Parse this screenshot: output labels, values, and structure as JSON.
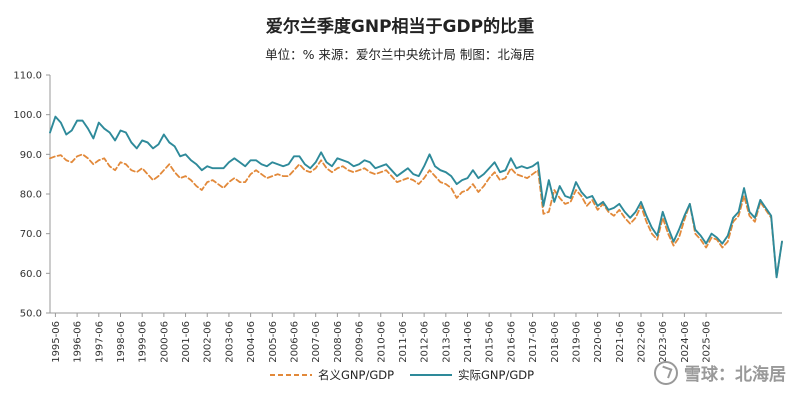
{
  "header": {
    "title": "爱尔兰季度GNP相当于GDP的比重",
    "subtitle": "单位：% 来源：爱尔兰中央统计局 制图：北海居"
  },
  "watermark": {
    "text": "雪球：北海居"
  },
  "colors": {
    "nominal": "#E2893A",
    "real": "#2E8A9A",
    "axis": "#999999"
  },
  "chart_data": {
    "type": "line",
    "title": "爱尔兰季度GNP相当于GDP的比重",
    "ylim": [
      50,
      110
    ],
    "yticks": [
      "50.0",
      "60.0",
      "70.0",
      "80.0",
      "90.0",
      "100.0",
      "110.0"
    ],
    "xticks": [
      "1995-06",
      "1996-06",
      "1997-06",
      "1998-06",
      "1999-06",
      "2000-06",
      "2001-06",
      "2002-06",
      "2003-06",
      "2004-06",
      "2005-06",
      "2006-06",
      "2007-06",
      "2008-06",
      "2009-06",
      "2010-06",
      "2011-06",
      "2012-06",
      "2013-06",
      "2014-06",
      "2015-06",
      "2016-06",
      "2017-06",
      "2018-06",
      "2019-06",
      "2020-06",
      "2021-06",
      "2022-06",
      "2023-06",
      "2024-06",
      "2025-06"
    ],
    "x_start": "1995-03",
    "x_step": "quarter",
    "series": [
      {
        "name": "名义GNP/GDP",
        "style": "dashed",
        "color": "#E2893A",
        "values": [
          89.0,
          89.5,
          89.8,
          88.5,
          88.0,
          89.5,
          90.0,
          89.0,
          87.5,
          88.5,
          89.0,
          87.0,
          86.0,
          88.0,
          87.5,
          86.0,
          85.5,
          86.5,
          85.0,
          83.5,
          84.5,
          86.0,
          87.5,
          85.5,
          84.0,
          84.5,
          83.5,
          82.0,
          81.0,
          83.0,
          83.5,
          82.5,
          81.5,
          83.0,
          84.0,
          83.0,
          83.0,
          85.0,
          86.0,
          85.0,
          84.0,
          84.5,
          85.0,
          84.5,
          84.5,
          86.0,
          87.5,
          86.0,
          85.5,
          86.5,
          88.5,
          86.5,
          85.5,
          86.5,
          87.0,
          86.0,
          85.5,
          86.0,
          86.5,
          85.5,
          85.0,
          85.5,
          86.0,
          84.5,
          83.0,
          83.5,
          84.0,
          83.5,
          82.5,
          84.0,
          86.0,
          84.5,
          83.0,
          82.5,
          81.5,
          79.0,
          80.5,
          81.0,
          82.5,
          80.5,
          82.0,
          84.0,
          85.5,
          83.5,
          84.0,
          86.5,
          85.0,
          84.5,
          84.0,
          85.0,
          86.0,
          75.0,
          75.5,
          81.0,
          79.0,
          77.5,
          78.0,
          81.0,
          79.5,
          77.0,
          78.5,
          76.0,
          77.5,
          75.5,
          74.5,
          76.0,
          74.0,
          72.5,
          74.0,
          77.0,
          73.0,
          70.0,
          68.5,
          74.0,
          70.0,
          67.0,
          69.0,
          73.5,
          77.5,
          70.0,
          68.5,
          66.5,
          69.0,
          68.5,
          66.5,
          68.0,
          73.0,
          74.5,
          79.5,
          74.5,
          73.0,
          78.0,
          76.0,
          74.0,
          59.0,
          68.0
        ]
      },
      {
        "name": "实际GNP/GDP",
        "style": "solid",
        "color": "#2E8A9A",
        "values": [
          95.5,
          99.5,
          98.0,
          95.0,
          96.0,
          98.5,
          98.5,
          96.5,
          94.0,
          98.0,
          96.5,
          95.5,
          93.5,
          96.0,
          95.5,
          93.0,
          91.5,
          93.5,
          93.0,
          91.5,
          92.5,
          95.0,
          93.0,
          92.0,
          89.5,
          90.0,
          88.5,
          87.5,
          86.0,
          87.0,
          86.5,
          86.5,
          86.5,
          88.0,
          89.0,
          88.0,
          87.0,
          88.5,
          88.5,
          87.5,
          87.0,
          88.0,
          87.5,
          87.0,
          87.5,
          89.5,
          89.5,
          87.5,
          86.5,
          88.0,
          90.5,
          88.0,
          87.0,
          89.0,
          88.5,
          88.0,
          87.0,
          87.5,
          88.5,
          88.0,
          86.5,
          87.0,
          87.5,
          86.0,
          84.5,
          85.5,
          86.5,
          85.0,
          84.5,
          87.0,
          90.0,
          87.0,
          86.0,
          85.5,
          84.5,
          82.5,
          83.5,
          84.0,
          86.0,
          84.0,
          85.0,
          86.5,
          88.0,
          85.5,
          86.0,
          89.0,
          86.5,
          87.0,
          86.5,
          87.0,
          88.0,
          77.0,
          83.5,
          78.0,
          82.0,
          79.5,
          79.0,
          83.0,
          80.5,
          79.0,
          79.5,
          77.0,
          78.0,
          76.0,
          76.5,
          77.5,
          75.5,
          74.0,
          75.5,
          78.0,
          74.5,
          71.5,
          69.5,
          75.5,
          71.5,
          68.0,
          71.0,
          74.5,
          77.5,
          71.0,
          69.5,
          67.5,
          70.0,
          69.0,
          67.5,
          69.5,
          74.0,
          75.5,
          81.5,
          75.5,
          74.0,
          78.5,
          76.5,
          74.5,
          59.0,
          68.0
        ]
      }
    ],
    "legend": [
      "名义GNP/GDP",
      "实际GNP/GDP"
    ],
    "legend_position": "bottom",
    "grid": false
  }
}
